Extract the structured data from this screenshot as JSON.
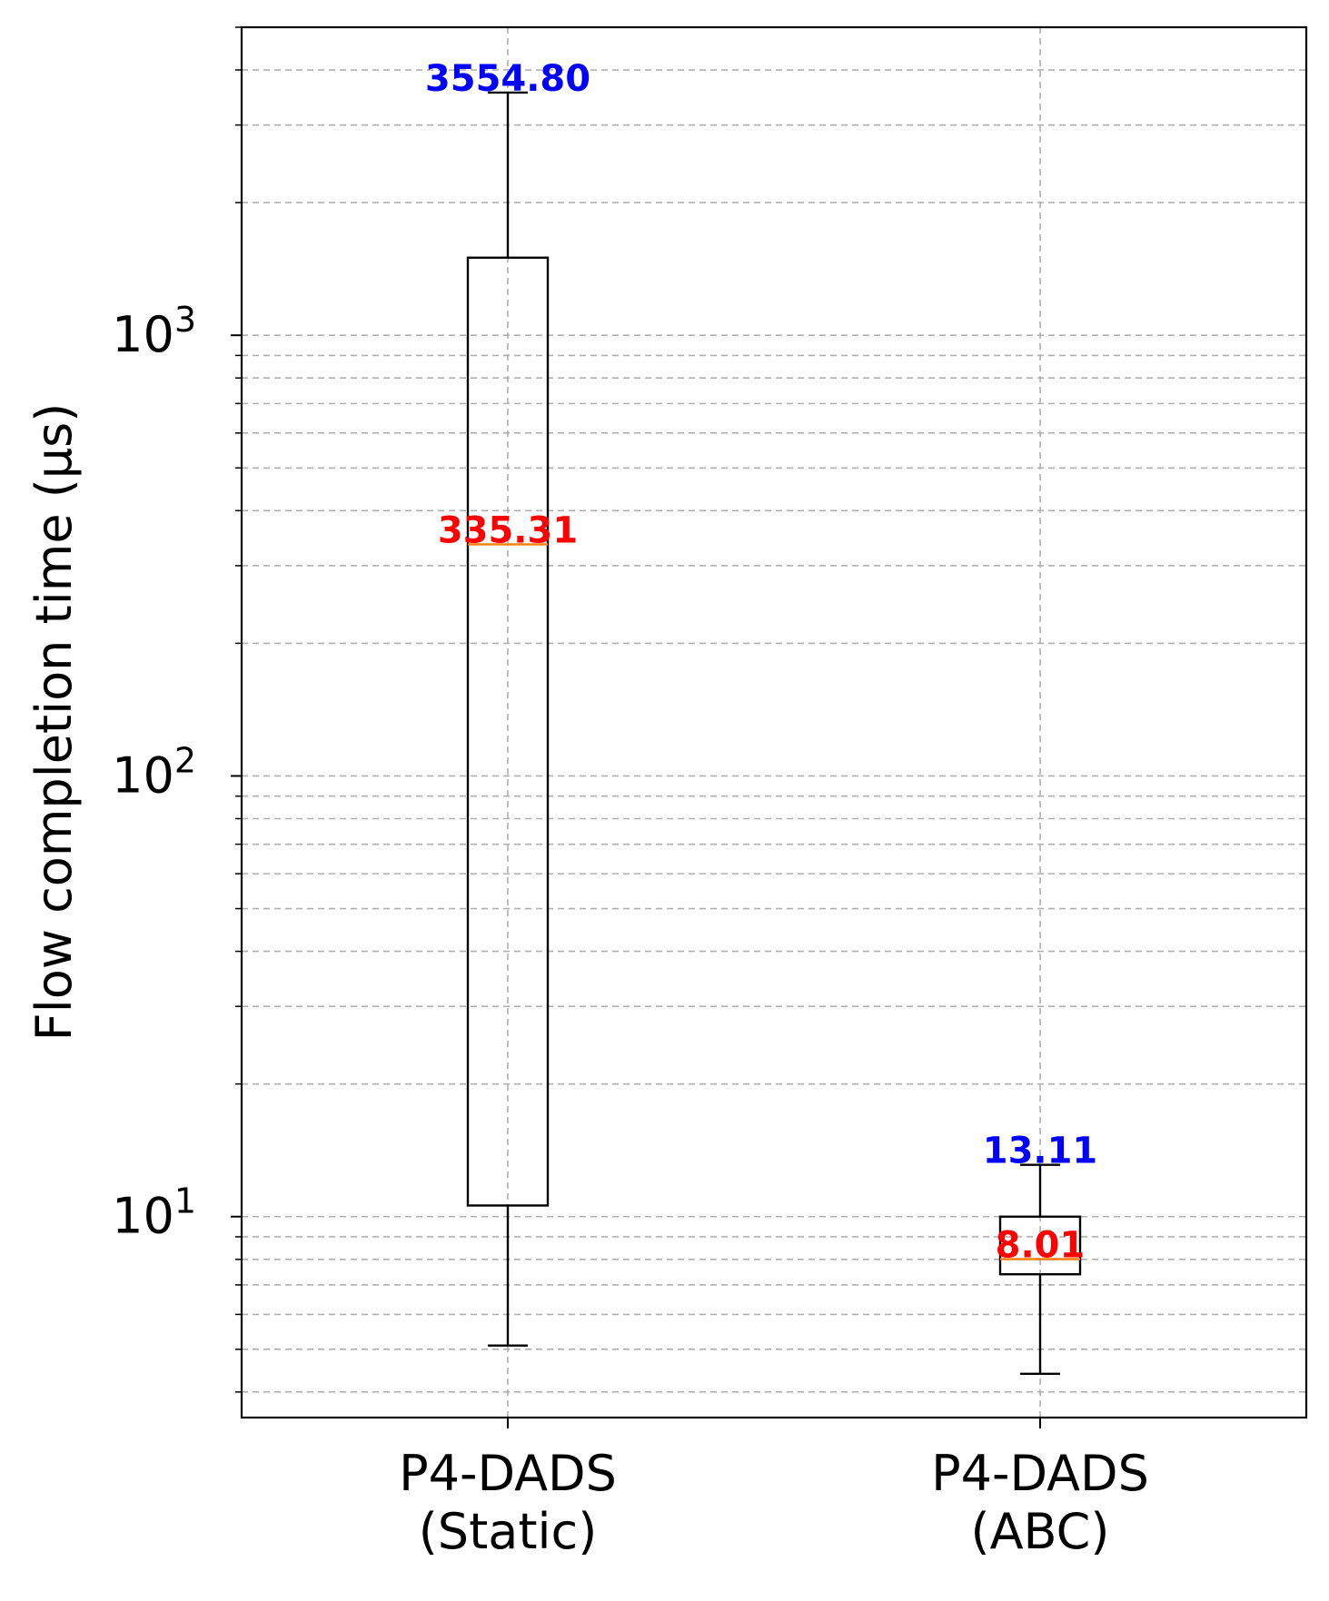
{
  "chart_data": {
    "type": "boxplot",
    "title": "",
    "xlabel": "",
    "ylabel": "Flow completion time (µs)",
    "yscale": "log",
    "ylim": [
      3.5,
      5000
    ],
    "y_major_ticks": [
      {
        "value": 10,
        "base": "10",
        "exp": "1"
      },
      {
        "value": 100,
        "base": "10",
        "exp": "2"
      },
      {
        "value": 1000,
        "base": "10",
        "exp": "3"
      }
    ],
    "grid": true,
    "categories": [
      "P4-DADS\n(Static)",
      "P4-DADS\n(ABC)"
    ],
    "boxes": [
      {
        "name_lines": [
          "P4-DADS",
          "(Static)"
        ],
        "whisker_low": 5.1,
        "q1": 10.6,
        "median": 335.31,
        "q3": 1500,
        "whisker_high": 3554.8,
        "median_label": "335.31",
        "max_label": "3554.80"
      },
      {
        "name_lines": [
          "P4-DADS",
          "(ABC)"
        ],
        "whisker_low": 4.4,
        "q1": 7.4,
        "median": 8.01,
        "q3": 10.0,
        "whisker_high": 13.11,
        "median_label": "8.01",
        "max_label": "13.11"
      }
    ],
    "colors": {
      "box": "#000000",
      "median_line": "#ff7f0e",
      "median_label": "#ff0000",
      "max_label": "#0000ff",
      "grid": "#b0b0b0"
    }
  }
}
